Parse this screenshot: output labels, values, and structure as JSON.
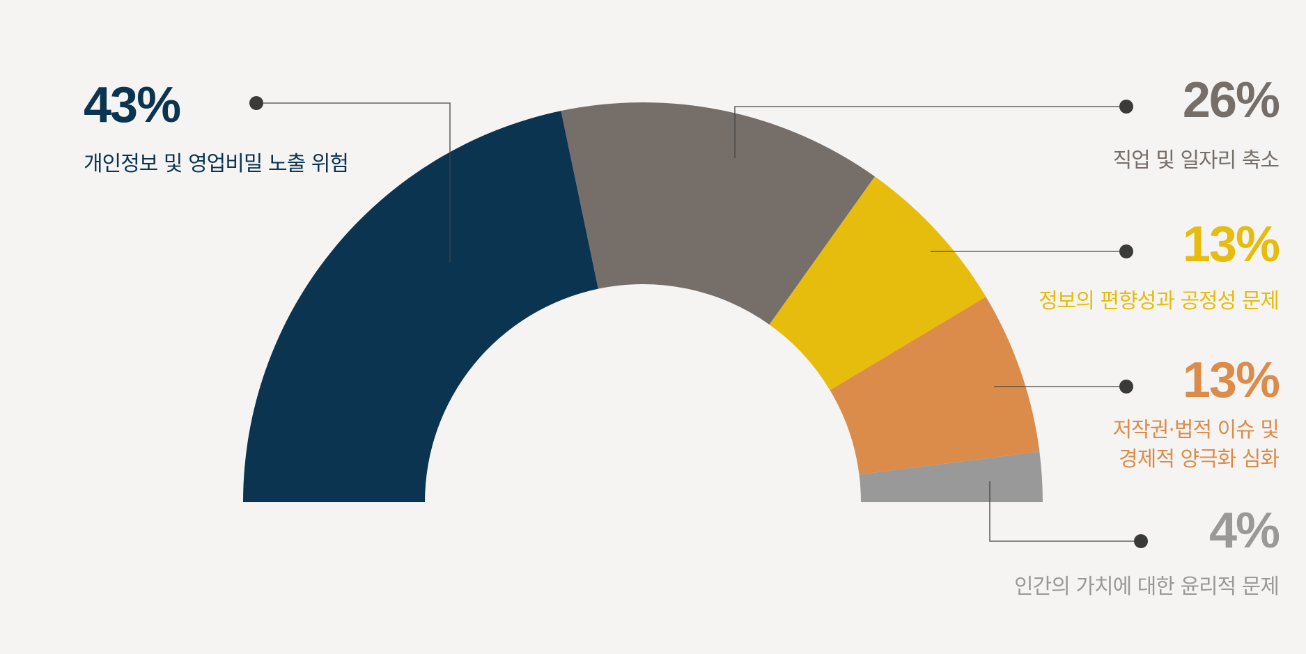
{
  "chart_data": {
    "type": "half-donut",
    "categories": [
      "개인정보 및 영업비밀 노출 위험",
      "직업 및 일자리 축소",
      "정보의 편향성과 공정성 문제",
      "저작권·법적 이슈 및\n경제적 양극화 심화",
      "인간의 가치에 대한 윤리적 문제"
    ],
    "values": [
      43,
      26,
      13,
      13,
      4
    ],
    "value_labels": [
      "43%",
      "26%",
      "13%",
      "13%",
      "4%"
    ],
    "colors": [
      "#0a3450",
      "#766e69",
      "#e6bc0d",
      "#dc8c4a",
      "#999999"
    ]
  }
}
